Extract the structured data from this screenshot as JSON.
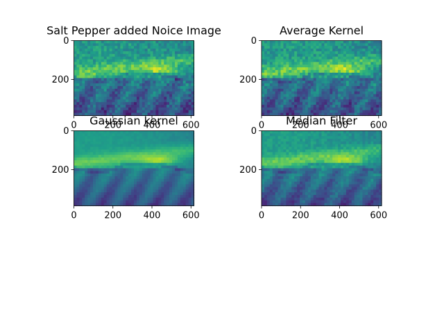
{
  "chart_data": [
    {
      "type": "heatmap",
      "title": "Salt Pepper added Noice Image",
      "xlabel": "",
      "ylabel": "",
      "xlim": [
        0,
        615
      ],
      "ylim": [
        385,
        0
      ],
      "x_ticks": [
        "0",
        "200",
        "400",
        "600"
      ],
      "y_ticks": [
        "0",
        "200"
      ],
      "colormap": "viridis",
      "noise": "salt-pepper"
    },
    {
      "type": "heatmap",
      "title": "Average Kernel",
      "xlabel": "",
      "ylabel": "",
      "xlim": [
        0,
        615
      ],
      "ylim": [
        385,
        0
      ],
      "x_ticks": [
        "0",
        "200",
        "400",
        "600"
      ],
      "y_ticks": [
        "0",
        "200"
      ],
      "colormap": "viridis",
      "noise": "salt-pepper"
    },
    {
      "type": "heatmap",
      "title": "Gaussian kernel",
      "xlabel": "",
      "ylabel": "",
      "xlim": [
        0,
        615
      ],
      "ylim": [
        385,
        0
      ],
      "x_ticks": [
        "0",
        "200",
        "400",
        "600"
      ],
      "y_ticks": [
        "0",
        "200"
      ],
      "colormap": "viridis",
      "noise": "smooth"
    },
    {
      "type": "heatmap",
      "title": "Median Filter",
      "xlabel": "",
      "ylabel": "",
      "xlim": [
        0,
        615
      ],
      "ylim": [
        385,
        0
      ],
      "x_ticks": [
        "0",
        "200",
        "400",
        "600"
      ],
      "y_ticks": [
        "0",
        "200"
      ],
      "colormap": "viridis",
      "noise": "fine"
    }
  ]
}
